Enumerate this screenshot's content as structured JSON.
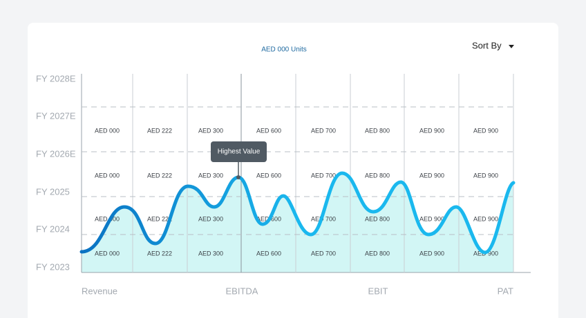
{
  "chart_data": {
    "type": "line",
    "title": "AED 000 Units",
    "sort_label": "Sort By",
    "annotation": "Highest Value",
    "y_categories": [
      "FY 2028E",
      "FY 2027E",
      "FY 2026E",
      "FY 2025",
      "FY 2024",
      "FY 2023"
    ],
    "x_categories": [
      "Revenue",
      "EBITDA",
      "EBIT",
      "PAT"
    ],
    "cell_rows": [
      [
        "AED 000",
        "AED 222",
        "AED 300",
        "AED 600",
        "AED 700",
        "AED 800",
        "AED 900",
        "AED 900"
      ],
      [
        "AED 000",
        "AED 222",
        "AED 300",
        "AED 600",
        "AED 700",
        "AED 800",
        "AED 900",
        "AED 900"
      ],
      [
        "AED 000",
        "AED 222",
        "AED 300",
        "AED 600",
        "AED 700",
        "AED 800",
        "AED 900",
        "AED 900"
      ],
      [
        "AED 000",
        "AED 222",
        "AED 300",
        "AED 600",
        "AED 700",
        "AED 800",
        "AED 900",
        "AED 900"
      ]
    ]
  }
}
